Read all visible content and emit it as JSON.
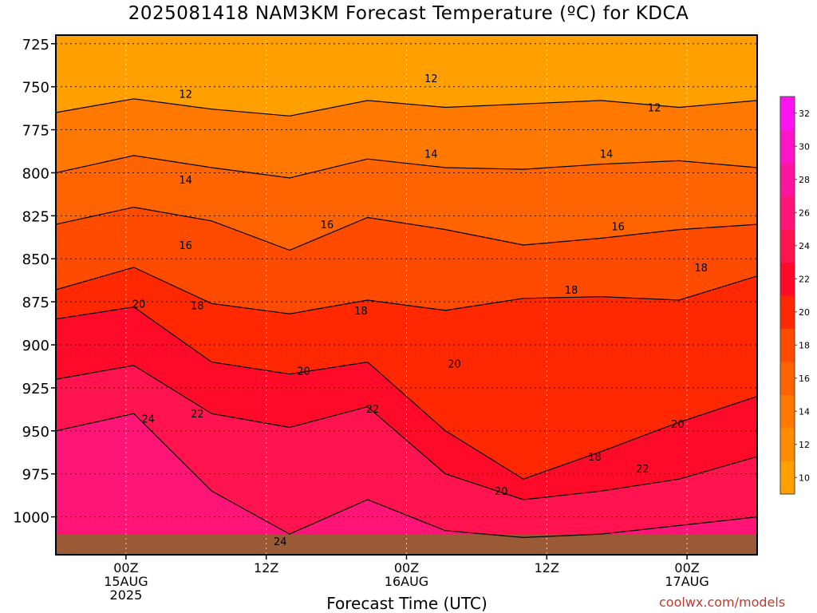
{
  "page": {
    "title": "2025081418 NAM3KM Forecast Temperature (ºC) for KDCA",
    "xlabel": "Forecast Time (UTC)",
    "credit": "coolwx.com/models"
  },
  "chart_data": {
    "type": "heatmap",
    "title": "2025081418 NAM3KM Forecast Temperature (ºC) for KDCA",
    "xlabel": "Forecast Time (UTC)",
    "ylabel": "",
    "x_range_hours": [
      0,
      60
    ],
    "y_range_hpa": [
      1022,
      720
    ],
    "y_ticks": [
      725,
      750,
      775,
      800,
      825,
      850,
      875,
      900,
      925,
      950,
      975,
      1000
    ],
    "x_ticks": [
      {
        "hour": 6,
        "lines": [
          "00Z",
          "15AUG",
          "2025"
        ]
      },
      {
        "hour": 18,
        "lines": [
          "12Z"
        ]
      },
      {
        "hour": 30,
        "lines": [
          "00Z",
          "16AUG"
        ]
      },
      {
        "hour": 42,
        "lines": [
          "12Z"
        ]
      },
      {
        "hour": 54,
        "lines": [
          "00Z",
          "17AUG"
        ]
      }
    ],
    "grid": true,
    "colorbar": {
      "placement": "right",
      "ticks": [
        10,
        12,
        14,
        16,
        18,
        20,
        22,
        24,
        26,
        28,
        30,
        32
      ],
      "colors": [
        "#ffa000",
        "#ff8c00",
        "#ff7800",
        "#ff6400",
        "#ff4b00",
        "#ff2800",
        "#ff0a28",
        "#ff1450",
        "#ff1478",
        "#ff14a0",
        "#ff14c8",
        "#ff14f0"
      ]
    },
    "isotherms": [
      {
        "value": 12,
        "pressure": [
          765,
          757,
          763,
          767,
          758,
          762,
          760,
          758,
          762,
          758
        ]
      },
      {
        "value": 14,
        "pressure": [
          800,
          790,
          797,
          803,
          792,
          797,
          798,
          795,
          793,
          797
        ]
      },
      {
        "value": 16,
        "pressure": [
          830,
          820,
          828,
          845,
          826,
          833,
          842,
          838,
          833,
          830
        ]
      },
      {
        "value": 18,
        "pressure": [
          868,
          855,
          876,
          882,
          874,
          880,
          873,
          872,
          874,
          860
        ]
      },
      {
        "value": 20,
        "pressure": [
          885,
          878,
          910,
          917,
          910,
          950,
          978,
          962,
          945,
          930
        ]
      },
      {
        "value": 22,
        "pressure": [
          920,
          912,
          940,
          948,
          936,
          975,
          990,
          985,
          978,
          965
        ]
      },
      {
        "value": 24,
        "pressure": [
          950,
          940,
          985,
          1010,
          990,
          1008,
          1012,
          1010,
          1005,
          1000
        ]
      }
    ],
    "contour_labels": [
      {
        "text": "12",
        "hour": 11.1,
        "pressure": 754
      },
      {
        "text": "12",
        "hour": 32.1,
        "pressure": 745
      },
      {
        "text": "12",
        "hour": 51.2,
        "pressure": 762
      },
      {
        "text": "14",
        "hour": 11.1,
        "pressure": 804
      },
      {
        "text": "14",
        "hour": 32.1,
        "pressure": 789
      },
      {
        "text": "14",
        "hour": 47.1,
        "pressure": 789
      },
      {
        "text": "16",
        "hour": 11.1,
        "pressure": 842
      },
      {
        "text": "16",
        "hour": 23.2,
        "pressure": 830
      },
      {
        "text": "16",
        "hour": 48.1,
        "pressure": 831
      },
      {
        "text": "18",
        "hour": 12.1,
        "pressure": 877
      },
      {
        "text": "18",
        "hour": 26.1,
        "pressure": 880
      },
      {
        "text": "18",
        "hour": 44.1,
        "pressure": 868
      },
      {
        "text": "18",
        "hour": 55.2,
        "pressure": 855
      },
      {
        "text": "18",
        "hour": 46.1,
        "pressure": 965
      },
      {
        "text": "20",
        "hour": 7.1,
        "pressure": 876
      },
      {
        "text": "20",
        "hour": 21.2,
        "pressure": 915
      },
      {
        "text": "20",
        "hour": 34.1,
        "pressure": 911
      },
      {
        "text": "20",
        "hour": 53.2,
        "pressure": 946
      },
      {
        "text": "20",
        "hour": 38.1,
        "pressure": 985
      },
      {
        "text": "22",
        "hour": 12.1,
        "pressure": 940
      },
      {
        "text": "22",
        "hour": 27.1,
        "pressure": 937
      },
      {
        "text": "22",
        "hour": 50.2,
        "pressure": 972
      },
      {
        "text": "24",
        "hour": 7.9,
        "pressure": 943
      },
      {
        "text": "24",
        "hour": 19.2,
        "pressure": 1014
      }
    ]
  }
}
